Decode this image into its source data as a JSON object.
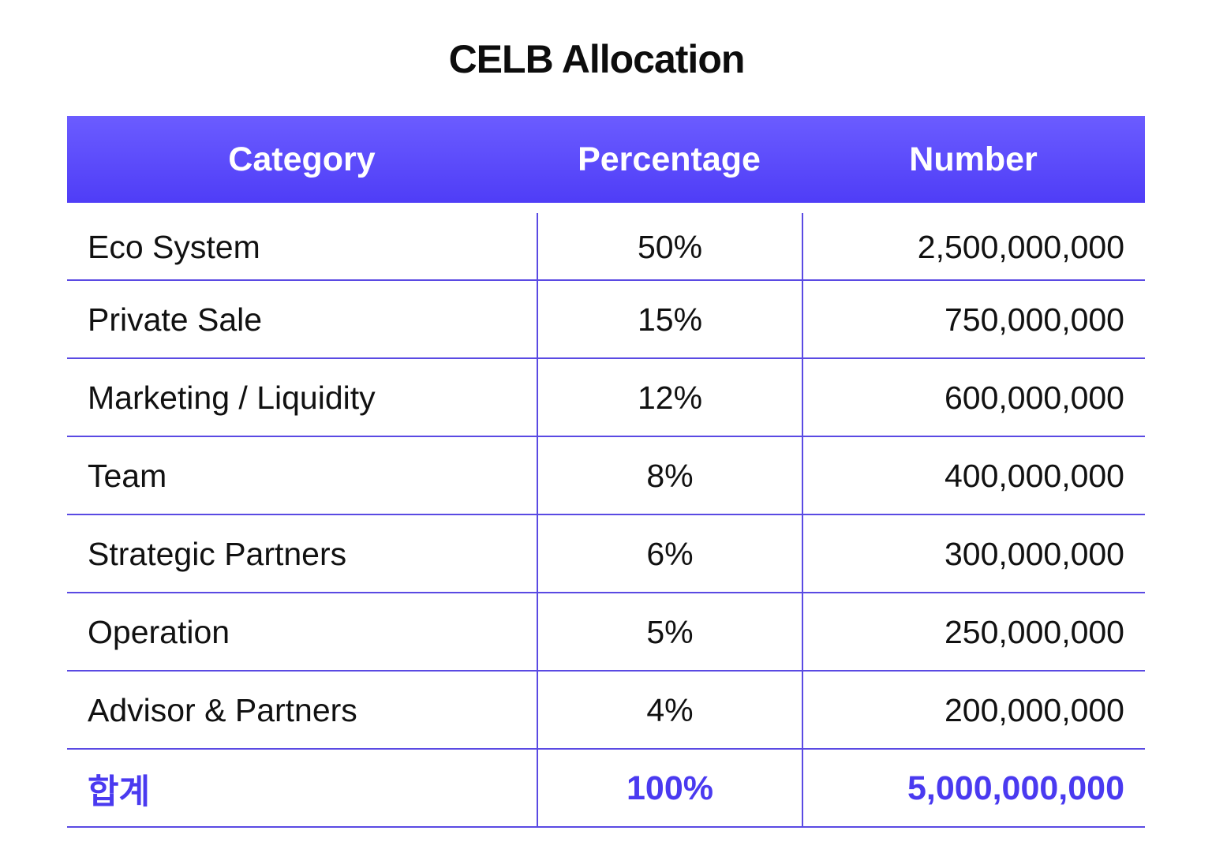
{
  "chart_data": {
    "type": "table",
    "title": "CELB Allocation",
    "columns": [
      "Category",
      "Percentage",
      "Number"
    ],
    "rows": [
      {
        "category": "Eco System",
        "percentage": "50%",
        "number": "2,500,000,000"
      },
      {
        "category": "Private Sale",
        "percentage": "15%",
        "number": "750,000,000"
      },
      {
        "category": "Marketing / Liquidity",
        "percentage": "12%",
        "number": "600,000,000"
      },
      {
        "category": "Team",
        "percentage": "8%",
        "number": "400,000,000"
      },
      {
        "category": "Strategic Partners",
        "percentage": "6%",
        "number": "300,000,000"
      },
      {
        "category": "Operation",
        "percentage": "5%",
        "number": "250,000,000"
      },
      {
        "category": "Advisor & Partners",
        "percentage": "4%",
        "number": "200,000,000"
      }
    ],
    "total": {
      "category": "합계",
      "percentage": "100%",
      "number": "5,000,000,000"
    },
    "colors": {
      "header_top": "#6b5cff",
      "header_bottom": "#4f3df7",
      "grid": "#5a4ae3",
      "total_text": "#4a3af0"
    }
  }
}
